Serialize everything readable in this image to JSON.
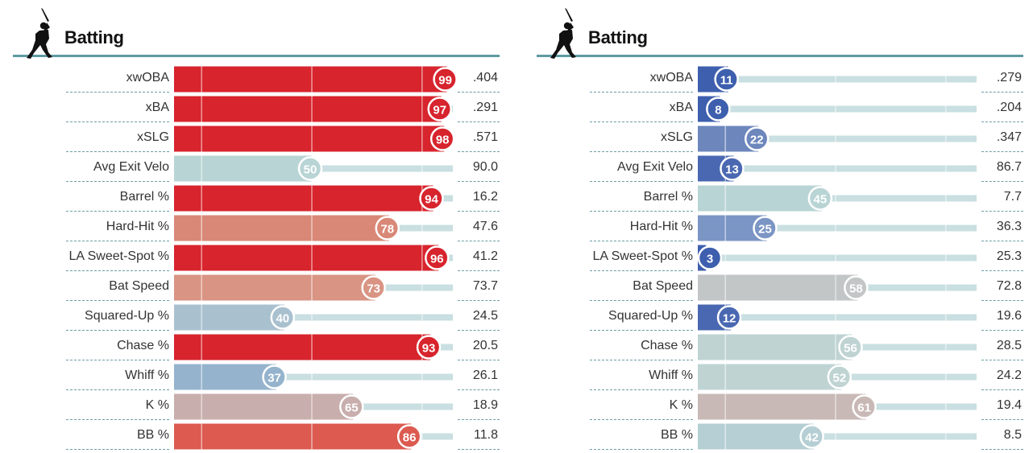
{
  "panels": [
    {
      "title": "Batting",
      "icon": "batter-icon",
      "chart_data": {
        "type": "bar",
        "orientation": "horizontal",
        "xlim": [
          0,
          100
        ],
        "categories": [
          "xwOBA",
          "xBA",
          "xSLG",
          "Avg Exit Velo",
          "Barrel %",
          "Hard-Hit %",
          "LA Sweet-Spot %",
          "Bat Speed",
          "Squared-Up %",
          "Chase %",
          "Whiff %",
          "K %",
          "BB %"
        ],
        "percentiles": [
          99,
          97,
          98,
          50,
          94,
          78,
          96,
          73,
          40,
          93,
          37,
          65,
          86
        ],
        "values": [
          ".404",
          ".291",
          ".571",
          "90.0",
          "16.2",
          "47.6",
          "41.2",
          "73.7",
          "24.5",
          "20.5",
          "26.1",
          "18.9",
          "11.8"
        ],
        "colors": [
          "#d7242d",
          "#d7242d",
          "#d7242d",
          "#b9d4d4",
          "#d7242d",
          "#d98877",
          "#d7242d",
          "#d99483",
          "#a9c0cf",
          "#d7242d",
          "#95b3cd",
          "#c8aeac",
          "#dc5a50"
        ]
      }
    },
    {
      "title": "Batting",
      "icon": "batter-icon",
      "chart_data": {
        "type": "bar",
        "orientation": "horizontal",
        "xlim": [
          0,
          100
        ],
        "categories": [
          "xwOBA",
          "xBA",
          "xSLG",
          "Avg Exit Velo",
          "Barrel %",
          "Hard-Hit %",
          "LA Sweet-Spot %",
          "Bat Speed",
          "Squared-Up %",
          "Chase %",
          "Whiff %",
          "K %",
          "BB %"
        ],
        "percentiles": [
          11,
          8,
          22,
          13,
          45,
          25,
          3,
          58,
          12,
          56,
          52,
          61,
          42
        ],
        "values": [
          ".279",
          ".204",
          ".347",
          "86.7",
          "7.7",
          "36.3",
          "25.3",
          "72.8",
          "19.6",
          "28.5",
          "24.2",
          "19.4",
          "8.5"
        ],
        "colors": [
          "#3e5fae",
          "#3e5fae",
          "#6d87bd",
          "#4a68b2",
          "#b9d4d4",
          "#7b95c5",
          "#3e5fae",
          "#c2c6c6",
          "#4a68b2",
          "#bfd3d3",
          "#bfd3d3",
          "#c8b9b6",
          "#b5cfd4"
        ]
      }
    }
  ]
}
